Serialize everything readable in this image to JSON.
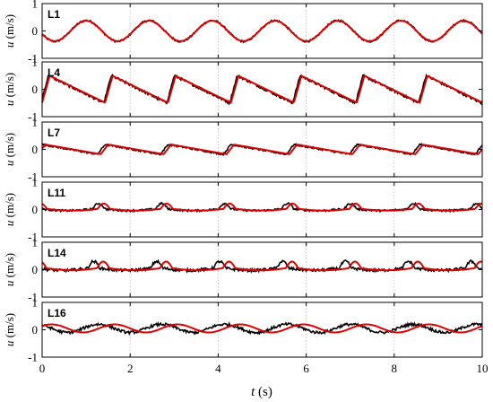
{
  "chart_data": {
    "type": "line",
    "xlabel": {
      "italic": "t",
      "rest": " (s)"
    },
    "ylabel": {
      "italic": "u",
      "rest": " (m/s)"
    },
    "xlim": [
      0,
      10
    ],
    "xticks": [
      0,
      2,
      4,
      6,
      8,
      10
    ],
    "xtick_labels": [
      "0",
      "2",
      "4",
      "6",
      "8",
      "10"
    ],
    "ylim": [
      -1,
      1
    ],
    "yticks": [
      -1,
      0,
      1
    ],
    "ytick_labels": [
      "-1",
      "0",
      "1"
    ],
    "grid": "vertical dotted lines at x = 2, 4, 6, 8",
    "period_s": 1.43,
    "colors": {
      "measured": "#000000",
      "model": "#e00000",
      "grid": "#bbbbbb",
      "axes": "#000000"
    },
    "panels": [
      {
        "label": "L1",
        "shape": "sine",
        "amplitude": 0.38,
        "offset": 0.0,
        "phase": 0.55,
        "noise": 0.035,
        "red_shift": 0.0
      },
      {
        "label": "L4",
        "shape": "sawtooth",
        "amplitude": 0.5,
        "offset": 0.0,
        "phase": 0.02,
        "noise": 0.045,
        "red_shift": 0.02
      },
      {
        "label": "L7",
        "shape": "sawtooth",
        "amplitude": 0.18,
        "offset": 0.0,
        "phase": 0.12,
        "noise": 0.03,
        "red_shift": 0.05
      },
      {
        "label": "L11",
        "shape": "pulse",
        "amplitude": 0.2,
        "offset": 0.02,
        "phase": 0.2,
        "noise": 0.035,
        "red_shift": 0.08
      },
      {
        "label": "L14",
        "shape": "pulse",
        "amplitude": 0.25,
        "offset": 0.05,
        "phase": 0.28,
        "noise": 0.05,
        "red_shift": 0.15
      },
      {
        "label": "L16",
        "shape": "sine",
        "amplitude": 0.15,
        "offset": 0.05,
        "phase": 0.35,
        "noise": 0.05,
        "red_shift": 0.25
      }
    ]
  }
}
